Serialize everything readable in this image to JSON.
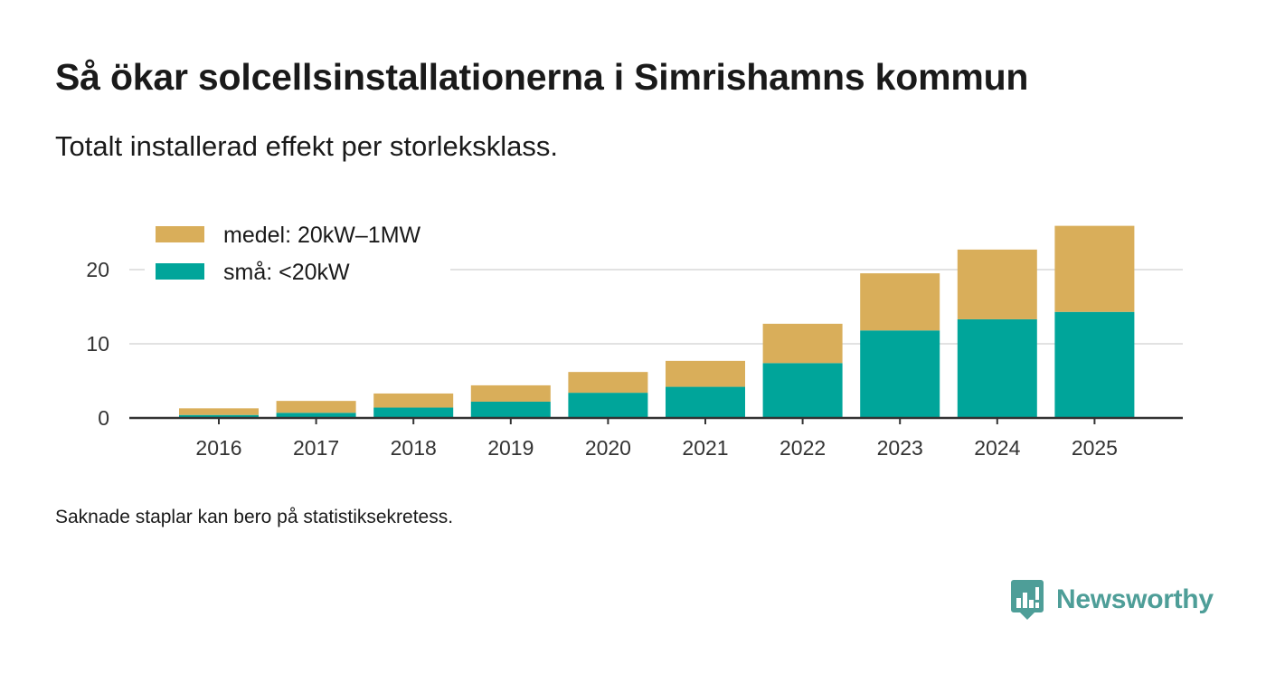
{
  "title": "Så ökar solcellsinstallationerna i Simrishamns kommun",
  "subtitle": "Totalt installerad effekt per storleksklass.",
  "footnote": "Saknade staplar kan bero på statistiksekretess.",
  "brand": {
    "name": "Newsworthy",
    "logo_icon": "newsworthy-chat-chart-icon",
    "color": "#4e9e98"
  },
  "chart_data": {
    "type": "bar",
    "stacked": true,
    "categories": [
      "2016",
      "2017",
      "2018",
      "2019",
      "2020",
      "2021",
      "2022",
      "2023",
      "2024",
      "2025"
    ],
    "series": [
      {
        "name": "små: <20kW",
        "color": "#00a59a",
        "values": [
          0.4,
          0.7,
          1.4,
          2.2,
          3.4,
          4.2,
          7.4,
          11.8,
          13.3,
          14.3
        ]
      },
      {
        "name": "medel: 20kW–1MW",
        "color": "#d9ae5a",
        "values": [
          0.9,
          1.6,
          1.9,
          2.2,
          2.8,
          3.5,
          5.3,
          7.7,
          9.4,
          11.6
        ]
      }
    ],
    "y_ticks": [
      "0",
      "10",
      "20"
    ],
    "ylim": [
      0,
      26
    ],
    "xlabel": "",
    "ylabel": "",
    "grid": true,
    "legend": "top-left",
    "legend_order": [
      "medel: 20kW–1MW",
      "små: <20kW"
    ]
  }
}
